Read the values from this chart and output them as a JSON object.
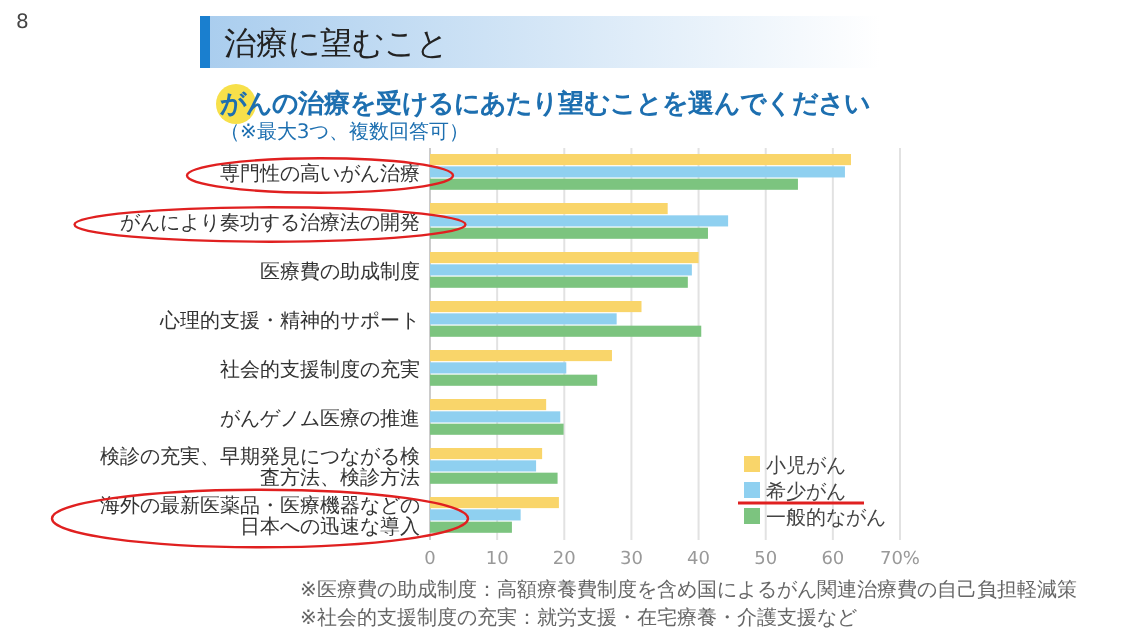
{
  "chart_data": {
    "type": "bar",
    "orientation": "horizontal",
    "title": "治療に望むこと",
    "subtitle": "がんの治療を受けるにあたり望むことを選んでください",
    "annotations": [
      "（※最大3つ、複数回答可）",
      "※医療費の助成制度：高額療養費制度を含め国によるがん関連治療費の自己負担軽減策",
      "※社会的支援制度の充実：就労支援・在宅療養・介護支援など",
      "8"
    ],
    "categories": [
      "専門性の高いがん治療",
      "がんにより奏功する治療法の開発",
      "医療費の助成制度",
      "心理的支援・精神的サポート",
      "社会的支援制度の充実",
      "がんゲノム医療の推進",
      "検診の充実、早期発見につながる検査方法、検診方法",
      "海外の最新医薬品・医療機器などの日本への迅速な導入"
    ],
    "series": [
      {
        "name": "小児がん",
        "color": "#f9d56a",
        "values": [
          62.7,
          35.4,
          40,
          31.5,
          27.1,
          17.3,
          16.7,
          19.2
        ]
      },
      {
        "name": "希少がん",
        "color": "#8fd0f0",
        "values": [
          61.8,
          44.4,
          39,
          27.8,
          20.3,
          19.4,
          15.8,
          13.5
        ]
      },
      {
        "name": "一般的ながん",
        "color": "#7cc47f",
        "values": [
          54.8,
          41.4,
          38.4,
          40.4,
          24.9,
          19.9,
          19,
          12.2
        ]
      }
    ],
    "xlim": [
      0,
      70
    ],
    "xticks": [
      0,
      10,
      20,
      30,
      40,
      50,
      60,
      {
        "value": 70,
        "label": "70%"
      }
    ],
    "grid": "x",
    "legend": "bottom right"
  }
}
